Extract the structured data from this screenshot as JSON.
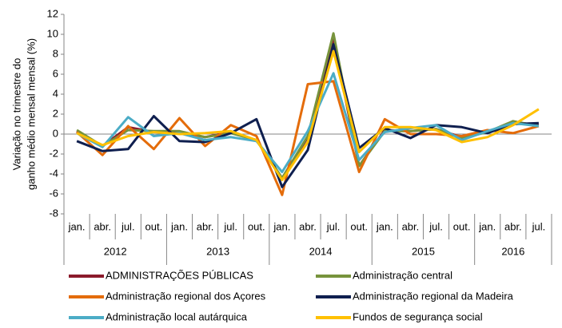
{
  "chart_data": {
    "type": "line",
    "ylabel": [
      "Variação no trimestre do",
      "ganho médio mensal mensal (%)"
    ],
    "category_groups": [
      {
        "label": "2012",
        "categories": [
          "jan.",
          "abr.",
          "jul.",
          "out."
        ]
      },
      {
        "label": "2013",
        "categories": [
          "jan.",
          "abr.",
          "jul.",
          "out."
        ]
      },
      {
        "label": "2014",
        "categories": [
          "jan.",
          "abr.",
          "jul.",
          "out."
        ]
      },
      {
        "label": "2015",
        "categories": [
          "jan.",
          "abr.",
          "jul.",
          "out."
        ]
      },
      {
        "label": "2016",
        "categories": [
          "jan.",
          "abr.",
          "jul."
        ]
      }
    ],
    "ylim": [
      -8,
      12
    ],
    "yticks": [
      -8,
      -6,
      -4,
      -2,
      0,
      2,
      4,
      6,
      8,
      10,
      12
    ],
    "series": [
      {
        "name": "ADMINISTRAÇÕES PÚBLICAS",
        "color": "#8b1a2b",
        "values": [
          0.3,
          -1.2,
          0.7,
          0.2,
          0.2,
          -0.3,
          0.2,
          -0.6,
          -4.5,
          -0.3,
          9.5,
          -3.2,
          0.4,
          0.3,
          0.5,
          -0.3,
          0.2,
          1.2,
          0.9
        ]
      },
      {
        "name": "Administração central",
        "color": "#77933c",
        "values": [
          0.4,
          -1.2,
          0.4,
          0.3,
          0.3,
          -0.3,
          0.1,
          -0.6,
          -4.4,
          -0.2,
          10.1,
          -3.2,
          0.3,
          0.3,
          0.5,
          -0.4,
          0.2,
          1.3,
          0.8
        ]
      },
      {
        "name": "Administração regional dos Açores",
        "color": "#e46c0a",
        "values": [
          0.2,
          -2.1,
          0.8,
          -1.5,
          1.6,
          -1.2,
          0.9,
          -0.2,
          -6.1,
          5.0,
          5.3,
          -3.8,
          1.5,
          0,
          0,
          -0.2,
          0.4,
          0.1,
          0.8
        ]
      },
      {
        "name": "Administração regional da Madeira",
        "color": "#0f1f4f",
        "values": [
          -0.7,
          -1.7,
          -1.5,
          1.8,
          -0.7,
          -0.8,
          0.1,
          1.5,
          -5.3,
          -1.6,
          9.0,
          -1.4,
          0.6,
          -0.4,
          0.9,
          0.7,
          0.1,
          1.0,
          1.1
        ]
      },
      {
        "name": "Administração local autárquica",
        "color": "#4bacc6",
        "values": [
          0.1,
          -1.3,
          1.7,
          -0.2,
          0.1,
          -0.6,
          -0.3,
          -0.7,
          -3.8,
          0.3,
          6.1,
          -2.6,
          0.2,
          0.6,
          0.9,
          -0.6,
          0.3,
          1.1,
          0.8
        ]
      },
      {
        "name": "Fundos de segurança social",
        "color": "#ffc000",
        "values": [
          0.1,
          -1.1,
          -0.2,
          0.2,
          0.0,
          0.1,
          0.3,
          -0.6,
          -4.6,
          -0.8,
          8.3,
          -1.8,
          0.7,
          0.7,
          0.4,
          -0.8,
          -0.3,
          0.9,
          2.5
        ]
      }
    ]
  }
}
